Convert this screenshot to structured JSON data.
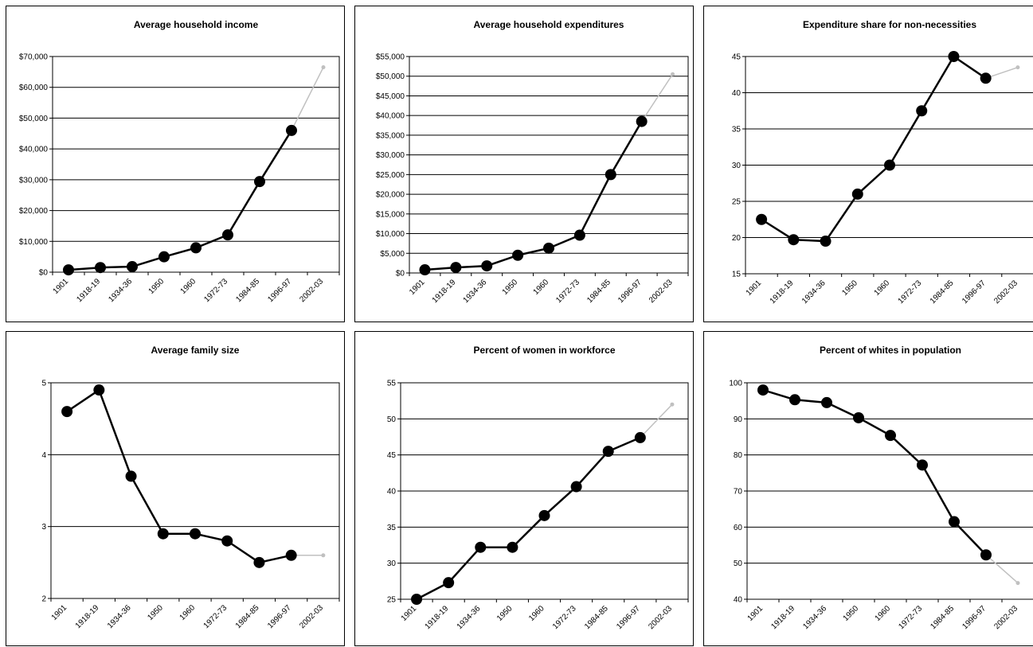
{
  "chart_data": [
    {
      "type": "line",
      "title": "Average household income",
      "categories": [
        "1901",
        "1918-19",
        "1934-36",
        "1950",
        "1960",
        "1972-73",
        "1984-85",
        "1996-97",
        "2002-03"
      ],
      "series": [
        {
          "values": [
            750,
            1500,
            1800,
            5000,
            7900,
            12100,
            29400,
            46000,
            66500
          ]
        }
      ],
      "ylim": [
        0,
        70000
      ],
      "yticks": [
        0,
        10000,
        20000,
        30000,
        40000,
        50000,
        60000,
        70000
      ],
      "ytick_labels": [
        "$0",
        "$10,000",
        "$20,000",
        "$30,000",
        "$40,000",
        "$50,000",
        "$60,000",
        "$70,000"
      ],
      "grid": true,
      "projection_from_index": 7,
      "colors": {
        "main": "#000000",
        "projection": "#c0c0c0"
      }
    },
    {
      "type": "line",
      "title": "Average household expenditures",
      "categories": [
        "1901",
        "1918-19",
        "1934-36",
        "1950",
        "1960",
        "1972-73",
        "1984-85",
        "1996-97",
        "2002-03"
      ],
      "series": [
        {
          "values": [
            800,
            1400,
            1800,
            4500,
            6300,
            9600,
            25000,
            38500,
            50500
          ]
        }
      ],
      "ylim": [
        0,
        55000
      ],
      "yticks": [
        0,
        5000,
        10000,
        15000,
        20000,
        25000,
        30000,
        35000,
        40000,
        45000,
        50000,
        55000
      ],
      "ytick_labels": [
        "$0",
        "$5,000",
        "$10,000",
        "$15,000",
        "$20,000",
        "$25,000",
        "$30,000",
        "$35,000",
        "$40,000",
        "$45,000",
        "$50,000",
        "$55,000"
      ],
      "grid": true,
      "projection_from_index": 7,
      "colors": {
        "main": "#000000",
        "projection": "#c0c0c0"
      }
    },
    {
      "type": "line",
      "title": "Expenditure share for non-necessities",
      "categories": [
        "1901",
        "1918-19",
        "1934-36",
        "1950",
        "1960",
        "1972-73",
        "1984-85",
        "1996-97",
        "2002-03"
      ],
      "series": [
        {
          "values": [
            22.5,
            19.7,
            19.5,
            26,
            30,
            37.5,
            45,
            42,
            43.5
          ]
        }
      ],
      "ylim": [
        15,
        45
      ],
      "yticks": [
        15,
        20,
        25,
        30,
        35,
        40,
        45
      ],
      "ytick_labels": [
        "15",
        "20",
        "25",
        "30",
        "35",
        "40",
        "45"
      ],
      "grid": true,
      "projection_from_index": 7,
      "colors": {
        "main": "#000000",
        "projection": "#c0c0c0"
      }
    },
    {
      "type": "line",
      "title": "Average family size",
      "categories": [
        "1901",
        "1918-19",
        "1934-36",
        "1950",
        "1960",
        "1972-73",
        "1984-85",
        "1996-97",
        "2002-03"
      ],
      "series": [
        {
          "values": [
            4.6,
            4.9,
            3.7,
            2.9,
            2.9,
            2.8,
            2.5,
            2.6,
            2.6
          ]
        }
      ],
      "ylim": [
        2,
        5
      ],
      "yticks": [
        2,
        3,
        4,
        5
      ],
      "ytick_labels": [
        "2",
        "3",
        "4",
        "5"
      ],
      "grid": true,
      "projection_from_index": 7,
      "colors": {
        "main": "#000000",
        "projection": "#c0c0c0"
      }
    },
    {
      "type": "line",
      "title": "Percent of women in workforce",
      "categories": [
        "1901",
        "1918-19",
        "1934-36",
        "1950",
        "1960",
        "1972-73",
        "1984-85",
        "1996-97",
        "2002-03"
      ],
      "series": [
        {
          "values": [
            25,
            27.3,
            32.2,
            32.2,
            36.6,
            40.6,
            45.5,
            47.4,
            52
          ]
        }
      ],
      "ylim": [
        25,
        55
      ],
      "yticks": [
        25,
        30,
        35,
        40,
        45,
        50,
        55
      ],
      "ytick_labels": [
        "25",
        "30",
        "35",
        "40",
        "45",
        "50",
        "55"
      ],
      "grid": true,
      "projection_from_index": 7,
      "colors": {
        "main": "#000000",
        "projection": "#c0c0c0"
      }
    },
    {
      "type": "line",
      "title": "Percent of whites in population",
      "categories": [
        "1901",
        "1918-19",
        "1934-36",
        "1950",
        "1960",
        "1972-73",
        "1984-85",
        "1996-97",
        "2002-03"
      ],
      "series": [
        {
          "values": [
            98,
            95.3,
            94.5,
            90.3,
            85.4,
            77.2,
            61.5,
            52.3,
            44.5
          ]
        }
      ],
      "ylim": [
        40,
        100
      ],
      "yticks": [
        40,
        50,
        60,
        70,
        80,
        90,
        100
      ],
      "ytick_labels": [
        "40",
        "50",
        "60",
        "70",
        "80",
        "90",
        "100"
      ],
      "grid": true,
      "projection_from_index": 7,
      "colors": {
        "main": "#000000",
        "projection": "#c0c0c0"
      }
    }
  ]
}
